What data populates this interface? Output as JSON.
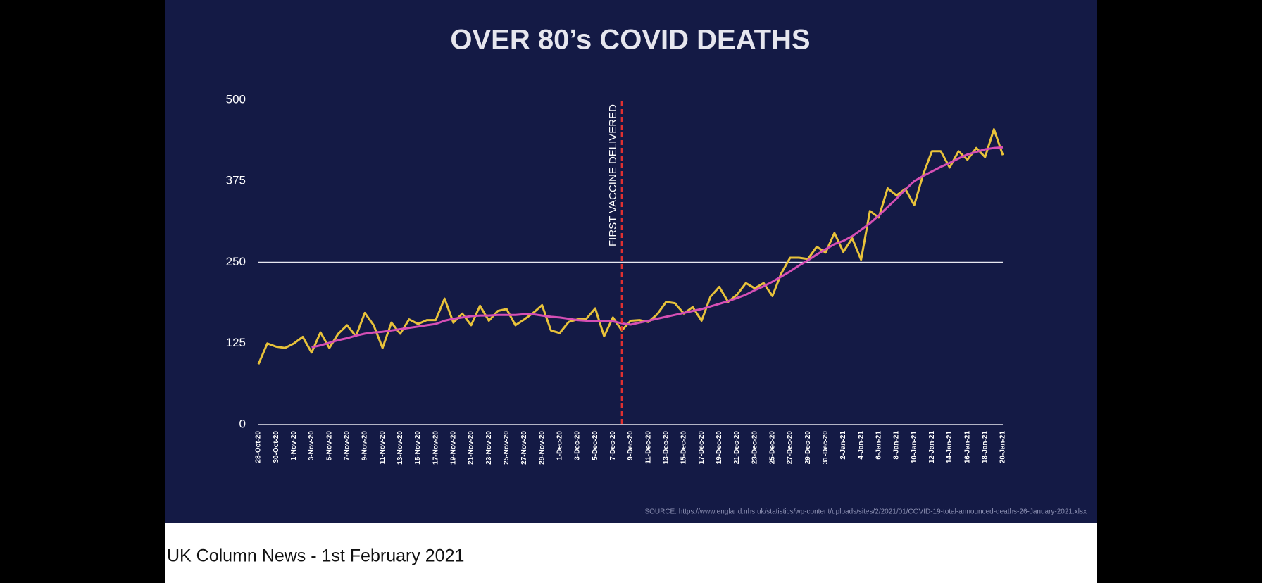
{
  "chart_data": {
    "type": "line",
    "title": "OVER 80’s COVID DEATHS",
    "annotation": {
      "text": "FIRST VACCINE DELIVERED",
      "category_index": 41
    },
    "source": "SOURCE: https://www.england.nhs.uk/statistics/wp-content/uploads/sites/2/2021/01/COVID-19-total-announced-deaths-26-January-2021.xlsx",
    "categories": [
      "28-Oct-20",
      null,
      "30-Oct-20",
      null,
      "1-Nov-20",
      null,
      "3-Nov-20",
      null,
      "5-Nov-20",
      null,
      "7-Nov-20",
      null,
      "9-Nov-20",
      null,
      "11-Nov-20",
      null,
      "13-Nov-20",
      null,
      "15-Nov-20",
      null,
      "17-Nov-20",
      null,
      "19-Nov-20",
      null,
      "21-Nov-20",
      null,
      "23-Nov-20",
      null,
      "25-Nov-20",
      null,
      "27-Nov-20",
      null,
      "29-Nov-20",
      null,
      "1-Dec-20",
      null,
      "3-Dec-20",
      null,
      "5-Dec-20",
      null,
      "7-Dec-20",
      null,
      "9-Dec-20",
      null,
      "11-Dec-20",
      null,
      "13-Dec-20",
      null,
      "15-Dec-20",
      null,
      "17-Dec-20",
      null,
      "19-Dec-20",
      null,
      "21-Dec-20",
      null,
      "23-Dec-20",
      null,
      "25-Dec-20",
      null,
      "27-Dec-20",
      null,
      "29-Dec-20",
      null,
      "31-Dec-20",
      null,
      "2-Jan-21",
      null,
      "4-Jan-21",
      null,
      "6-Jan-21",
      null,
      "8-Jan-21",
      null,
      "10-Jan-21",
      null,
      "12-Jan-21",
      null,
      "14-Jan-21",
      null,
      "16-Jan-21",
      null,
      "18-Jan-21",
      null,
      "20-Jan-21"
    ],
    "series": [
      {
        "color": "#e8c23a",
        "values": [
          93,
          125,
          120,
          118,
          125,
          135,
          111,
          142,
          118,
          140,
          153,
          136,
          172,
          153,
          118,
          157,
          140,
          162,
          155,
          161,
          161,
          194,
          157,
          171,
          153,
          183,
          160,
          175,
          178,
          153,
          162,
          172,
          184,
          145,
          141,
          158,
          162,
          163,
          179,
          136,
          165,
          145,
          160,
          161,
          158,
          170,
          189,
          187,
          171,
          181,
          160,
          197,
          212,
          189,
          200,
          218,
          210,
          218,
          198,
          233,
          257,
          257,
          255,
          274,
          265,
          295,
          266,
          287,
          254,
          329,
          319,
          364,
          353,
          363,
          338,
          385,
          421,
          421,
          396,
          421,
          408,
          426,
          412,
          455,
          415
        ]
      },
      {
        "color": "#d64fb5",
        "values": [
          null,
          null,
          null,
          null,
          null,
          null,
          119,
          122,
          126,
          130,
          133,
          137,
          140,
          142,
          143,
          145,
          147,
          149,
          151,
          153,
          155,
          160,
          163,
          165,
          167,
          168,
          168,
          169,
          169,
          169,
          170,
          170,
          168,
          166,
          165,
          163,
          161,
          160,
          159,
          160,
          159,
          156,
          154,
          157,
          160,
          163,
          166,
          169,
          172,
          175,
          178,
          182,
          186,
          190,
          195,
          200,
          207,
          213,
          220,
          228,
          236,
          245,
          253,
          262,
          270,
          278,
          283,
          290,
          300,
          310,
          322,
          335,
          348,
          362,
          375,
          383,
          390,
          397,
          403,
          410,
          416,
          420,
          424,
          426,
          427
        ]
      }
    ],
    "ylim": [
      0,
      500
    ],
    "yticks": [
      0,
      125,
      250,
      375,
      500
    ],
    "grid_lines": [
      0,
      250
    ]
  },
  "caption": "UK Column News - 1st February 2021"
}
